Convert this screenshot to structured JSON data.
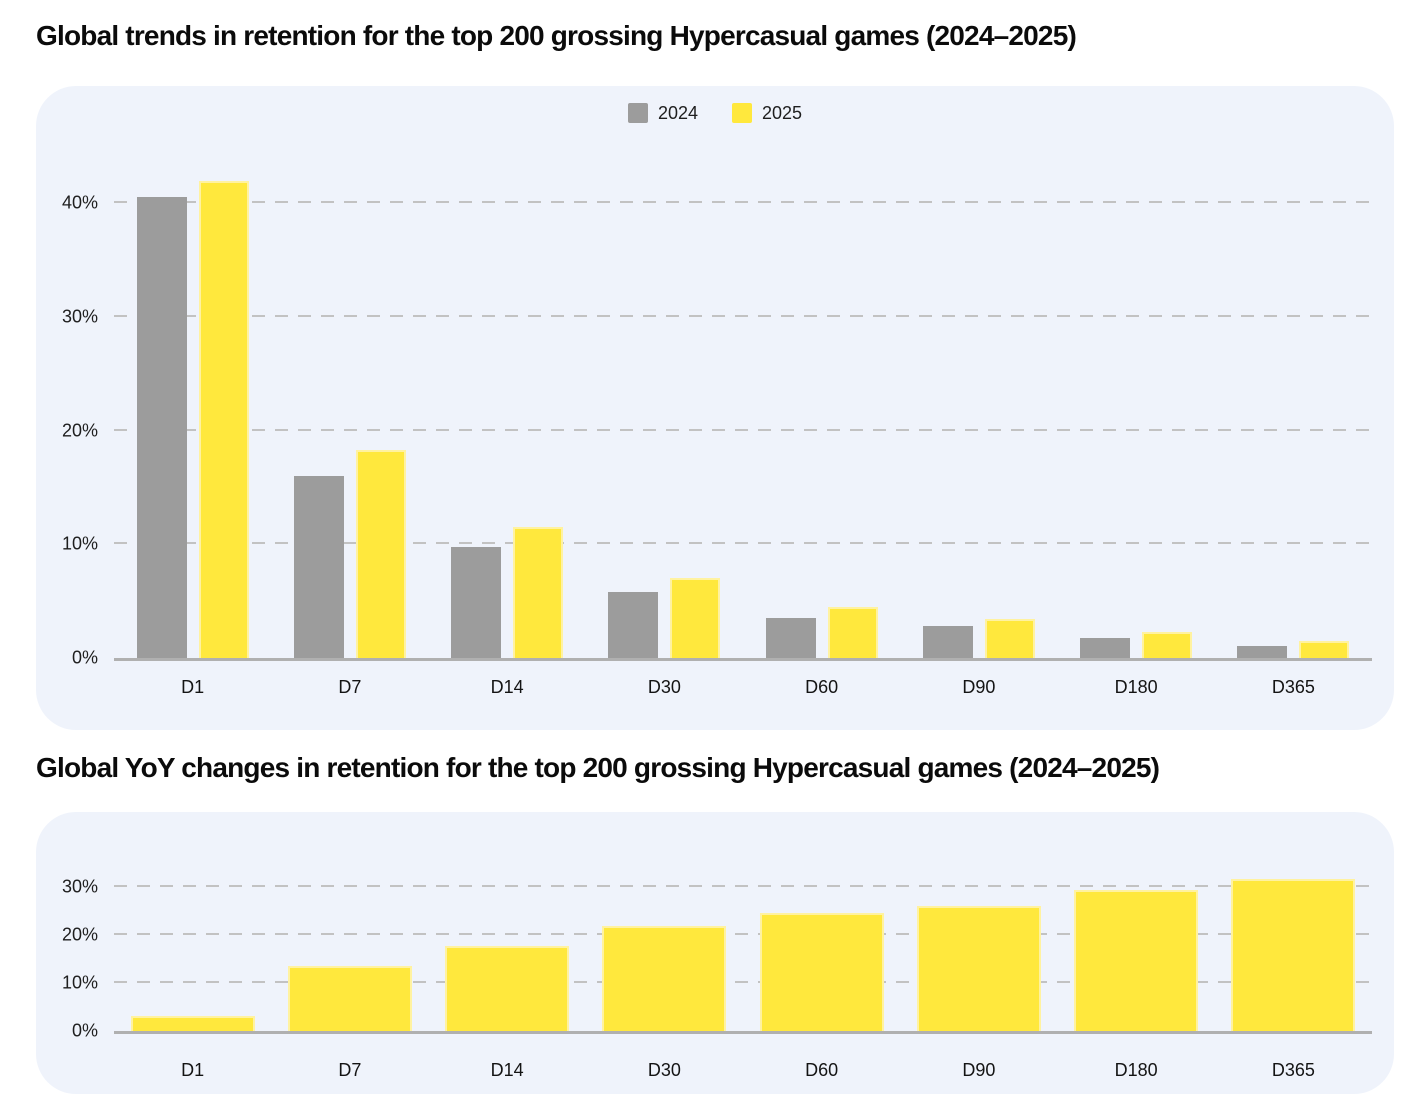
{
  "page": {
    "background": "#ffffff"
  },
  "colors": {
    "card_background": "#eff3fb",
    "gridline": "#c2c2c2",
    "axis_line": "#b0b0b0",
    "title_text": "#0b0b0b",
    "tick_text": "#1e1e1e",
    "series_2024": "#9c9c9c",
    "series_2025": "#ffe83d",
    "series_2025_border": "#fff2a0"
  },
  "chart_data": [
    {
      "type": "bar",
      "title": "Global trends in retention for the top 200 grossing Hypercasual games (2024–2025)",
      "categories": [
        "D1",
        "D7",
        "D14",
        "D30",
        "D60",
        "D90",
        "D180",
        "D365"
      ],
      "series": [
        {
          "name": "2024",
          "color": "#9c9c9c",
          "values": [
            40.6,
            16.0,
            9.8,
            5.8,
            3.5,
            2.8,
            1.8,
            1.1
          ]
        },
        {
          "name": "2025",
          "color": "#ffe83d",
          "border_color": "#fff2a0",
          "values": [
            42.0,
            18.3,
            11.5,
            7.0,
            4.5,
            3.4,
            2.3,
            1.5
          ]
        }
      ],
      "xlabel": "",
      "ylabel": "",
      "yticks": [
        {
          "value": 0,
          "label": "0%"
        },
        {
          "value": 10,
          "label": "10%"
        },
        {
          "value": 20,
          "label": "20%"
        },
        {
          "value": 30,
          "label": "30%"
        },
        {
          "value": 40,
          "label": "40%"
        }
      ],
      "ylim": [
        0,
        44
      ],
      "grid": "dashed-horizontal",
      "legend_position": "top-center"
    },
    {
      "type": "bar",
      "title": "Global YoY changes in retention for the top 200 grossing Hypercasual games (2024–2025)",
      "categories": [
        "D1",
        "D7",
        "D14",
        "D30",
        "D60",
        "D90",
        "D180",
        "D365"
      ],
      "series": [
        {
          "name": "yoy-change",
          "color": "#ffe83d",
          "border_color": "#fff2a0",
          "values": [
            3.2,
            13.6,
            17.7,
            21.8,
            24.6,
            26.1,
            29.3,
            31.6
          ]
        }
      ],
      "xlabel": "",
      "ylabel": "",
      "yticks": [
        {
          "value": 0,
          "label": "0%"
        },
        {
          "value": 10,
          "label": "10%"
        },
        {
          "value": 20,
          "label": "20%"
        },
        {
          "value": 30,
          "label": "30%"
        }
      ],
      "ylim": [
        0,
        35
      ],
      "grid": "dashed-horizontal",
      "legend_position": "none"
    }
  ]
}
